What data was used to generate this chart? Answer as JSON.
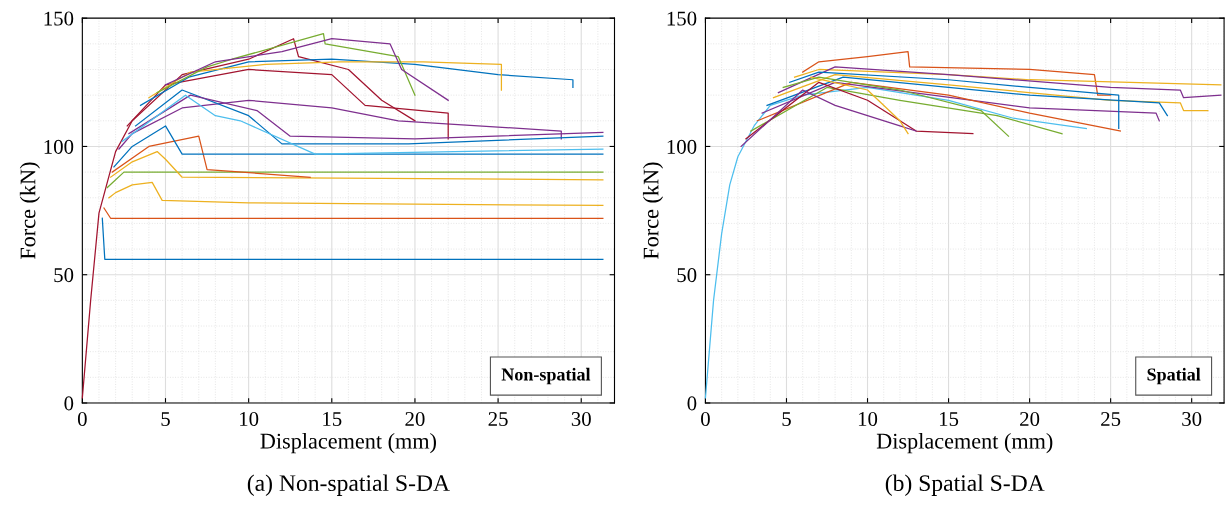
{
  "chart_data": [
    {
      "type": "line",
      "title": "(a) Non-spatial S-DA",
      "xlabel": "Displacement (mm)",
      "ylabel": "Force (kN)",
      "annotations": [
        "Non-spatial"
      ],
      "xlim": [
        0,
        32
      ],
      "ylim": [
        0,
        150
      ],
      "xticks": [
        0,
        5,
        10,
        15,
        20,
        25,
        30
      ],
      "yticks": [
        0,
        50,
        100,
        150
      ],
      "grid": true,
      "line_style": "solid",
      "marker": "none",
      "series": [
        {
          "color": "#a2142f",
          "x": [
            0,
            0.5,
            1,
            2,
            3,
            6,
            10,
            12.7,
            13,
            16,
            18,
            20
          ],
          "values": [
            2,
            40,
            74,
            98,
            110,
            128,
            134,
            142,
            135,
            130,
            118,
            110
          ]
        },
        {
          "color": "#0072bd",
          "x": [
            1.2,
            1.35,
            31.3
          ],
          "values": [
            72,
            56,
            56
          ]
        },
        {
          "color": "#d95319",
          "x": [
            1.3,
            1.7,
            31.3
          ],
          "values": [
            76,
            72,
            72
          ]
        },
        {
          "color": "#edb120",
          "x": [
            1.6,
            2,
            3,
            4.2,
            4.8,
            10,
            31.3
          ],
          "values": [
            80,
            82,
            85,
            86,
            79,
            78,
            77
          ]
        },
        {
          "color": "#77ac30",
          "x": [
            1.5,
            2.5,
            31.3
          ],
          "values": [
            84,
            90,
            90
          ]
        },
        {
          "color": "#edb120",
          "x": [
            1.7,
            3,
            4.5,
            5,
            6,
            31.3
          ],
          "values": [
            88,
            94,
            98,
            95,
            88,
            87
          ]
        },
        {
          "color": "#d95319",
          "x": [
            1.8,
            4,
            7,
            7.5,
            13.7
          ],
          "values": [
            90,
            100,
            104,
            91,
            88
          ]
        },
        {
          "color": "#0072bd",
          "x": [
            1.9,
            3,
            5,
            6,
            31.3
          ],
          "values": [
            92,
            100,
            108,
            97,
            97
          ]
        },
        {
          "color": "#7e2f8e",
          "x": [
            2.2,
            3,
            6,
            10,
            15,
            19,
            28.8,
            28.8
          ],
          "values": [
            99,
            105,
            115,
            118,
            115,
            110,
            106,
            103
          ]
        },
        {
          "color": "#a2142f",
          "x": [
            2.7,
            5,
            10,
            15,
            17,
            22,
            22
          ],
          "values": [
            108,
            124,
            130,
            128,
            116,
            113,
            103
          ]
        },
        {
          "color": "#0072bd",
          "x": [
            3.5,
            6.4,
            10,
            15,
            20,
            25,
            29.5,
            29.5
          ],
          "values": [
            116,
            127,
            133,
            134,
            132,
            128,
            126,
            123
          ]
        },
        {
          "color": "#edb120",
          "x": [
            4,
            6.5,
            11,
            15.5,
            20.5,
            25.2,
            25.2
          ],
          "values": [
            119,
            129,
            132,
            133,
            133,
            132,
            122
          ]
        },
        {
          "color": "#77ac30",
          "x": [
            4.5,
            7.5,
            9,
            14.5,
            14.6,
            19,
            20
          ],
          "values": [
            121,
            131,
            134,
            144,
            140,
            135,
            120
          ]
        },
        {
          "color": "#7e2f8e",
          "x": [
            5,
            8,
            12,
            15,
            18.5,
            19.2,
            22
          ],
          "values": [
            124,
            133,
            137,
            142,
            140,
            130,
            118
          ]
        },
        {
          "color": "#0072bd",
          "x": [
            3.2,
            6,
            10,
            12,
            19.6,
            31.3
          ],
          "values": [
            108,
            122,
            112,
            101,
            101,
            104
          ]
        },
        {
          "color": "#7e2f8e",
          "x": [
            2.8,
            6.5,
            10.5,
            12.5,
            20,
            31.3
          ],
          "values": [
            105,
            120,
            114,
            104,
            103,
            105.5
          ]
        },
        {
          "color": "#4dbeee",
          "x": [
            2.4,
            6.2,
            8,
            9.5,
            14,
            31.3
          ],
          "values": [
            102,
            120,
            112,
            110,
            97,
            99
          ]
        }
      ]
    },
    {
      "type": "line",
      "title": "(b) Spatial S-DA",
      "xlabel": "Displacement (mm)",
      "ylabel": "Force (kN)",
      "annotations": [
        "Spatial"
      ],
      "xlim": [
        0,
        32
      ],
      "ylim": [
        0,
        150
      ],
      "xticks": [
        0,
        5,
        10,
        15,
        20,
        25,
        30
      ],
      "yticks": [
        0,
        50,
        100,
        150
      ],
      "grid": true,
      "line_style": "solid",
      "marker": "none",
      "series": [
        {
          "color": "#4dbeee",
          "x": [
            0,
            0.5,
            1,
            1.5,
            2,
            3,
            4,
            6,
            10,
            15,
            19,
            23.5
          ],
          "values": [
            2,
            40,
            66,
            85,
            96,
            108,
            116,
            120,
            123,
            118,
            111,
            107
          ]
        },
        {
          "color": "#d95319",
          "x": [
            6,
            7,
            10,
            12.5,
            12.6,
            20,
            24,
            24.2,
            25
          ],
          "values": [
            129,
            133,
            135,
            137,
            131,
            130,
            128,
            120,
            120
          ]
        },
        {
          "color": "#edb120",
          "x": [
            5.5,
            7,
            15,
            20,
            31.8
          ],
          "values": [
            127,
            130,
            128,
            126,
            124
          ]
        },
        {
          "color": "#7e2f8e",
          "x": [
            4.5,
            8,
            15,
            25,
            29.3,
            29.5,
            31.8
          ],
          "values": [
            121,
            131,
            128,
            123,
            122,
            119,
            120
          ]
        },
        {
          "color": "#edb120",
          "x": [
            4.2,
            8,
            15,
            25,
            29.3,
            29.5,
            31
          ],
          "values": [
            119,
            128,
            124,
            118,
            117,
            114,
            114
          ]
        },
        {
          "color": "#0072bd",
          "x": [
            3.8,
            8.5,
            15,
            20,
            28,
            28.5
          ],
          "values": [
            116,
            127,
            123,
            120,
            117,
            112
          ]
        },
        {
          "color": "#7e2f8e",
          "x": [
            3.5,
            8,
            14,
            20,
            27.8,
            28
          ],
          "values": [
            113,
            125,
            120,
            115,
            113,
            110
          ]
        },
        {
          "color": "#d95319",
          "x": [
            3.2,
            9,
            15,
            20,
            24,
            25.6
          ],
          "values": [
            110,
            125,
            120,
            113,
            108,
            106
          ]
        },
        {
          "color": "#77ac30",
          "x": [
            2.8,
            7.5,
            12,
            18,
            22
          ],
          "values": [
            106,
            123,
            118,
            112,
            105
          ]
        },
        {
          "color": "#a2142f",
          "x": [
            2.5,
            7,
            10,
            12,
            13,
            16.5
          ],
          "values": [
            103,
            125,
            118,
            110,
            106,
            105
          ]
        },
        {
          "color": "#7e2f8e",
          "x": [
            2.2,
            6,
            8,
            10,
            12,
            13
          ],
          "values": [
            100,
            122,
            116,
            112,
            108,
            106
          ]
        },
        {
          "color": "#edb120",
          "x": [
            6.5,
            10,
            12,
            12.5
          ],
          "values": [
            127,
            122,
            110,
            105
          ]
        },
        {
          "color": "#0072bd",
          "x": [
            5.2,
            7,
            15,
            20,
            25.5,
            25.5
          ],
          "values": [
            125,
            129,
            126,
            123,
            120,
            107
          ]
        },
        {
          "color": "#77ac30",
          "x": [
            4.8,
            7,
            12,
            17,
            18.7
          ],
          "values": [
            123,
            127,
            122,
            114,
            104
          ]
        }
      ]
    }
  ]
}
